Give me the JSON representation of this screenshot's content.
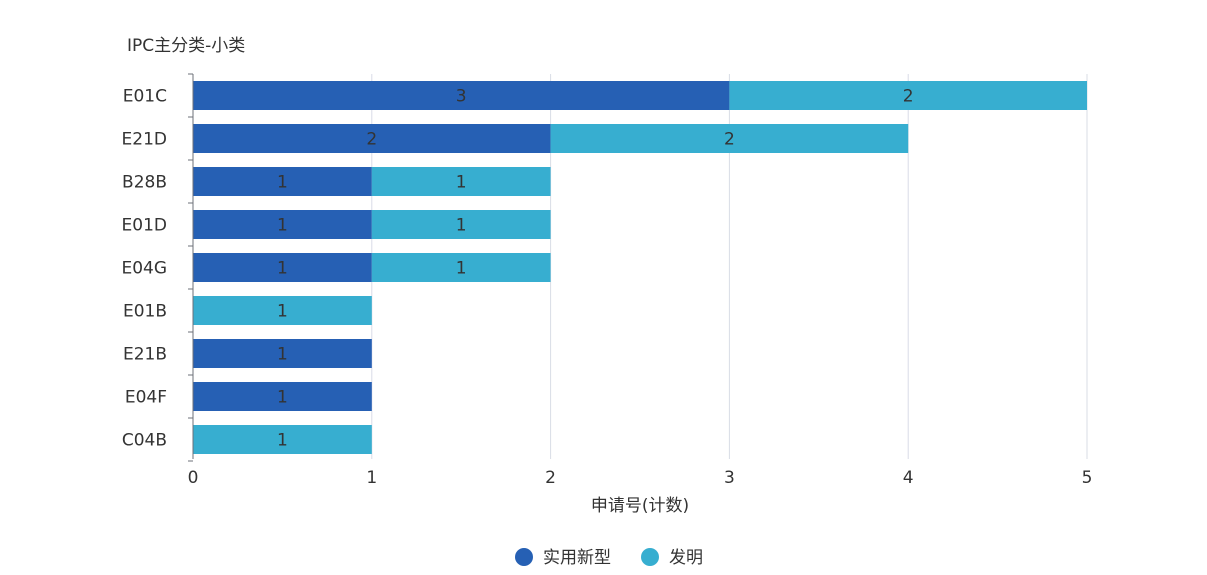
{
  "chart_data": {
    "type": "bar",
    "orientation": "horizontal",
    "stacked": true,
    "title": "IPC主分类-小类",
    "xlabel": "申请号(计数)",
    "ylabel": "IPC主分类-小类",
    "xlim": [
      0,
      5
    ],
    "x_ticks": [
      0,
      1,
      2,
      3,
      4,
      5
    ],
    "grid": true,
    "legend_position": "bottom-center",
    "categories": [
      "E01C",
      "E21D",
      "B28B",
      "E01D",
      "E04G",
      "E01B",
      "E21B",
      "E04F",
      "C04B"
    ],
    "series": [
      {
        "name": "实用新型",
        "color": "#2660b4",
        "values": [
          3,
          2,
          1,
          1,
          1,
          0,
          1,
          1,
          0
        ]
      },
      {
        "name": "发明",
        "color": "#37aed0",
        "values": [
          2,
          2,
          1,
          1,
          1,
          1,
          0,
          0,
          1
        ]
      }
    ]
  }
}
